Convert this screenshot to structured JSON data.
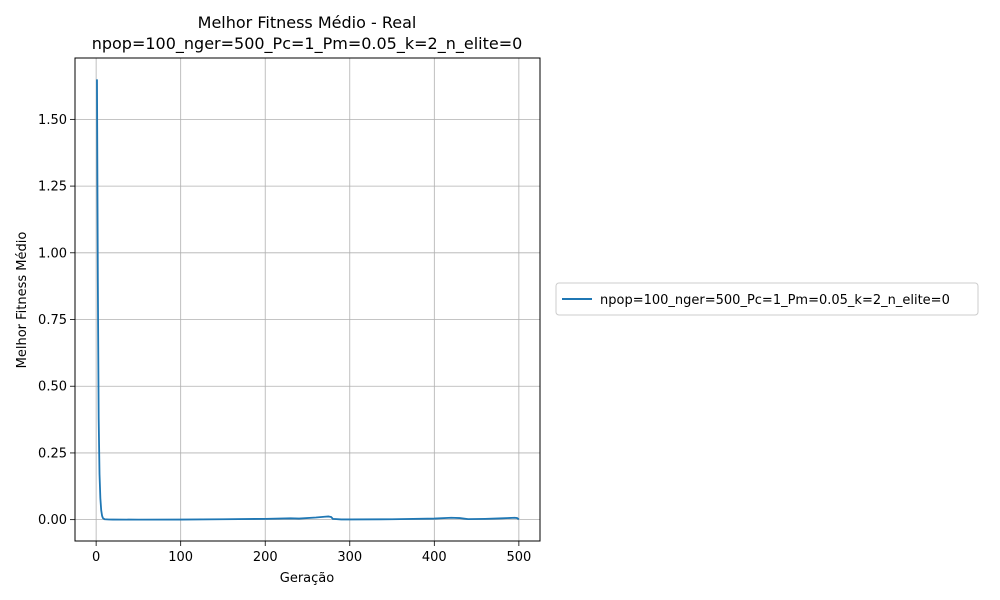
{
  "chart_data": {
    "type": "line",
    "title": "Melhor Fitness Médio - Real",
    "subtitle": "npop=100_nger=500_Pc=1_Pm=0.05_k=2_n_elite=0",
    "xlabel": "Geração",
    "ylabel": "Melhor Fitness Médio",
    "xlim": [
      -25,
      525
    ],
    "ylim": [
      -0.08,
      1.73
    ],
    "xticks": [
      0,
      100,
      200,
      300,
      400,
      500
    ],
    "yticks": [
      0.0,
      0.25,
      0.5,
      0.75,
      1.0,
      1.25,
      1.5
    ],
    "xtick_labels": [
      "0",
      "100",
      "200",
      "300",
      "400",
      "500"
    ],
    "ytick_labels": [
      "0.00",
      "0.25",
      "0.50",
      "0.75",
      "1.00",
      "1.25",
      "1.50"
    ],
    "grid": true,
    "legend": "outside-right",
    "series": [
      {
        "name": "npop=100_nger=500_Pc=1_Pm=0.05_k=2_n_elite=0",
        "color": "#1f77b4",
        "x": [
          1,
          2,
          3,
          4,
          5,
          6,
          7,
          8,
          10,
          15,
          20,
          50,
          100,
          150,
          200,
          230,
          240,
          260,
          270,
          275,
          278,
          280,
          290,
          300,
          350,
          400,
          420,
          430,
          440,
          460,
          480,
          495,
          498,
          500
        ],
        "y": [
          1.65,
          0.9,
          0.38,
          0.17,
          0.08,
          0.035,
          0.015,
          0.006,
          0.0015,
          0.0005,
          0.0003,
          0.0002,
          0.0004,
          0.0015,
          0.003,
          0.005,
          0.004,
          0.008,
          0.011,
          0.012,
          0.01,
          0.003,
          0.0008,
          0.0008,
          0.0015,
          0.004,
          0.007,
          0.006,
          0.002,
          0.003,
          0.005,
          0.007,
          0.006,
          0.001
        ]
      }
    ]
  }
}
